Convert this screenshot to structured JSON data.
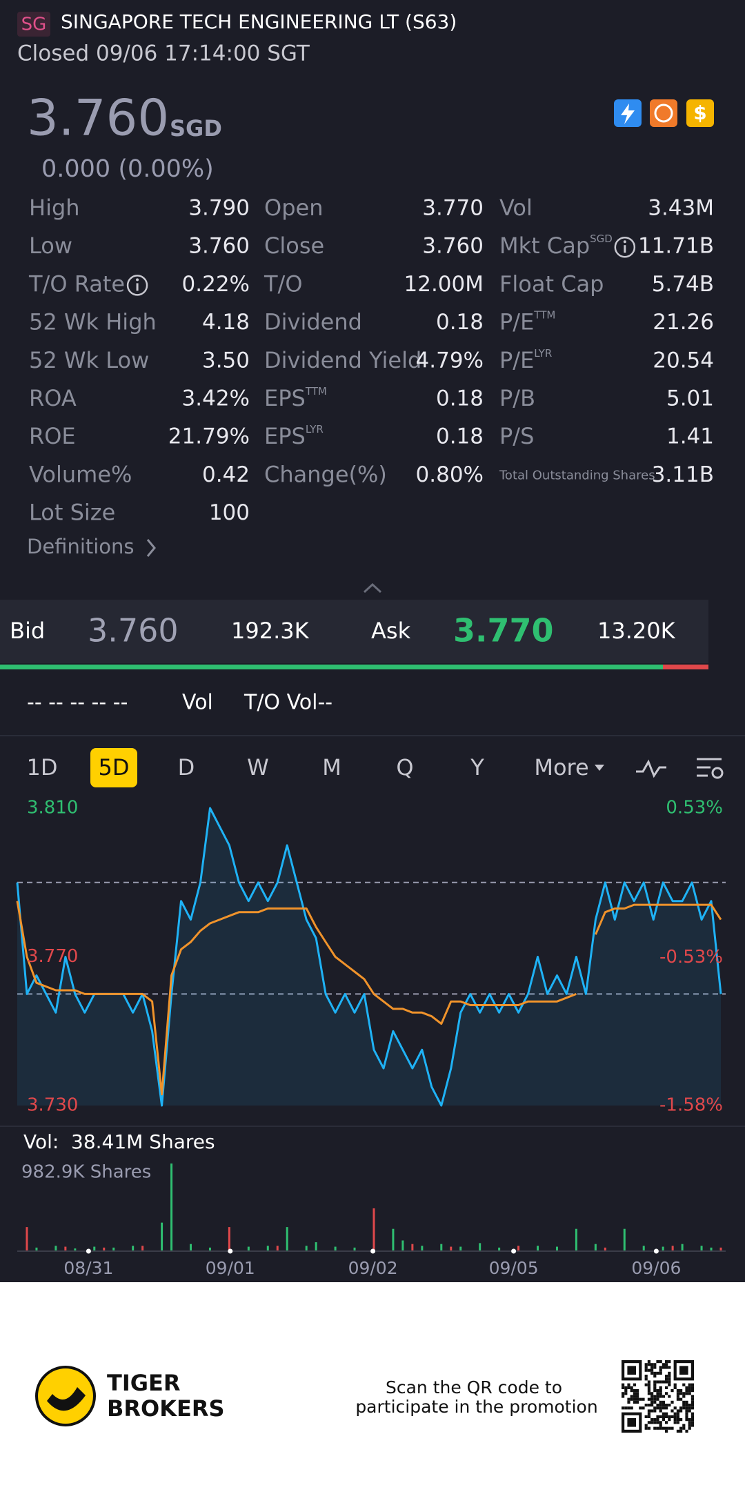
{
  "header": {
    "badge": "SG",
    "title": "SINGAPORE TECH ENGINEERING LT (S63)",
    "status": "Closed 09/06 17:14:00 SGT"
  },
  "quote": {
    "price": "3.760",
    "currency": "SGD",
    "change": "0.000 (0.00%)"
  },
  "stats": [
    [
      {
        "label": "High",
        "value": "3.790"
      },
      {
        "label": "Open",
        "value": "3.770"
      },
      {
        "label": "Vol",
        "value": "3.43M"
      }
    ],
    [
      {
        "label": "Low",
        "value": "3.760"
      },
      {
        "label": "Close",
        "value": "3.760"
      },
      {
        "label": "Mkt Cap",
        "sup": "SGD",
        "info": true,
        "value": "11.71B"
      }
    ],
    [
      {
        "label": "T/O Rate",
        "info": true,
        "value": "0.22%"
      },
      {
        "label": "T/O",
        "value": "12.00M"
      },
      {
        "label": "Float Cap",
        "value": "5.74B"
      }
    ],
    [
      {
        "label": "52 Wk High",
        "value": "4.18"
      },
      {
        "label": "Dividend",
        "value": "0.18"
      },
      {
        "label": "P/E",
        "sup": "TTM",
        "value": "21.26"
      }
    ],
    [
      {
        "label": "52 Wk Low",
        "value": "3.50"
      },
      {
        "label": "Dividend Yield",
        "value": "4.79%"
      },
      {
        "label": "P/E",
        "sup": "LYR",
        "value": "20.54"
      }
    ],
    [
      {
        "label": "ROA",
        "value": "3.42%"
      },
      {
        "label": "EPS",
        "sup": "TTM",
        "value": "0.18"
      },
      {
        "label": "P/B",
        "value": "5.01"
      }
    ],
    [
      {
        "label": "ROE",
        "value": "21.79%"
      },
      {
        "label": "EPS",
        "sup": "LYR",
        "value": "0.18"
      },
      {
        "label": "P/S",
        "value": "1.41"
      }
    ],
    [
      {
        "label": "Volume%",
        "value": "0.42"
      },
      {
        "label": "Change(%)",
        "value": "0.80%"
      },
      {
        "label": "Total Outstanding Shares",
        "small": true,
        "value": "3.11B"
      }
    ],
    [
      {
        "label": "Lot Size",
        "value": "100"
      }
    ]
  ],
  "definitions": "Definitions",
  "order_book": {
    "bid_label": "Bid",
    "bid": "3.760",
    "bid_size": "192.3K",
    "ask_label": "Ask",
    "ask": "3.770",
    "ask_size": "13.20K"
  },
  "indicator_row": {
    "ma": "-- -- -- -- --",
    "vol": "Vol",
    "to_vol": "T/O Vol--"
  },
  "periods": [
    "1D",
    "5D",
    "D",
    "W",
    "M",
    "Q",
    "Y",
    "More"
  ],
  "active_period": "5D",
  "chart_data": {
    "type": "line",
    "xlim": [
      0,
      73
    ],
    "ylim": [
      3.73,
      3.81
    ],
    "yticks": [
      {
        "value": 3.81,
        "label": "3.810",
        "color": "#2fbf71"
      },
      {
        "value": 3.77,
        "label": "3.770",
        "color": "#e0484b"
      },
      {
        "value": 3.73,
        "label": "3.730",
        "color": "#e0484b"
      }
    ],
    "y2lim": [
      -1.58,
      0.53
    ],
    "y2ticks": [
      {
        "value": 0.53,
        "label": "0.53%",
        "color": "#2fbf71"
      },
      {
        "value": -0.53,
        "label": "-0.53%",
        "color": "#e0484b"
      },
      {
        "value": -1.58,
        "label": "-1.58%",
        "color": "#e0484b"
      }
    ],
    "reference_lines": [
      3.79,
      3.76
    ],
    "xticks": [
      {
        "value": 7.4,
        "label": "08/31"
      },
      {
        "value": 22.1,
        "label": "09/01"
      },
      {
        "value": 36.9,
        "label": "09/02"
      },
      {
        "value": 51.5,
        "label": "09/05"
      },
      {
        "value": 66.3,
        "label": "09/06"
      }
    ],
    "series": [
      {
        "color": "#1fb2f5",
        "values": [
          3.79,
          3.76,
          3.765,
          3.76,
          3.755,
          3.77,
          3.76,
          3.755,
          3.76,
          3.76,
          3.76,
          3.76,
          3.755,
          3.76,
          3.75,
          3.73,
          3.76,
          3.785,
          3.78,
          3.79,
          3.81,
          3.805,
          3.8,
          3.79,
          3.785,
          3.79,
          3.785,
          3.79,
          3.8,
          3.79,
          3.78,
          3.775,
          3.76,
          3.755,
          3.76,
          3.755,
          3.76,
          3.745,
          3.74,
          3.75,
          3.745,
          3.74,
          3.745,
          3.735,
          3.73,
          3.74,
          3.755,
          3.76,
          3.755,
          3.76,
          3.755,
          3.76,
          3.755,
          3.76,
          3.77,
          3.76,
          3.765,
          3.76,
          3.77,
          3.76,
          3.78,
          3.79,
          3.78,
          3.79,
          3.785,
          3.79,
          3.78,
          3.79,
          3.785,
          3.785,
          3.79,
          3.78,
          3.785,
          3.76
        ]
      },
      {
        "color": "#f0932b",
        "values": [
          3.785,
          3.77,
          3.763,
          3.762,
          3.761,
          3.761,
          3.761,
          3.76,
          3.76,
          3.76,
          3.76,
          3.76,
          3.76,
          3.76,
          3.758,
          3.733,
          3.765,
          3.772,
          3.774,
          3.777,
          3.779,
          3.78,
          3.781,
          3.782,
          3.782,
          3.782,
          3.783,
          3.783,
          3.783,
          3.783,
          3.783,
          3.778,
          3.774,
          3.77,
          3.768,
          3.766,
          3.764,
          3.76,
          3.758,
          3.756,
          3.756,
          3.755,
          3.755,
          3.754,
          3.752,
          3.758,
          3.758,
          3.757,
          3.757,
          3.757,
          3.757,
          3.757,
          3.757,
          3.758,
          3.758,
          3.758,
          3.758,
          3.759,
          3.76,
          null,
          3.776,
          3.782,
          3.783,
          3.783,
          3.784,
          3.784,
          3.784,
          3.784,
          3.784,
          3.784,
          3.784,
          3.784,
          3.784,
          3.78
        ]
      }
    ]
  },
  "volume_chart": {
    "type": "bar",
    "label": "Vol:",
    "total": "38.41M Shares",
    "max_label": "982.9K Shares",
    "xlim": [
      0,
      73
    ],
    "ylim": [
      0,
      982.9
    ],
    "series": [
      {
        "color": "#2fbf71",
        "values": [
          null,
          null,
          40,
          null,
          60,
          null,
          30,
          null,
          50,
          null,
          40,
          null,
          60,
          null,
          null,
          320,
          982.9,
          null,
          80,
          null,
          40,
          null,
          null,
          null,
          50,
          null,
          60,
          null,
          270,
          null,
          60,
          100,
          null,
          50,
          null,
          40,
          null,
          null,
          null,
          250,
          120,
          null,
          60,
          null,
          80,
          null,
          50,
          null,
          90,
          null,
          40,
          null,
          null,
          null,
          60,
          null,
          50,
          null,
          250,
          null,
          80,
          null,
          null,
          250,
          null,
          60,
          null,
          50,
          null,
          80,
          null,
          60,
          40,
          null
        ]
      },
      {
        "color": "#e0484b",
        "values": [
          null,
          270,
          null,
          null,
          null,
          50,
          null,
          null,
          null,
          40,
          null,
          null,
          null,
          60,
          null,
          null,
          null,
          null,
          null,
          null,
          null,
          null,
          270,
          null,
          null,
          null,
          null,
          60,
          null,
          null,
          null,
          null,
          null,
          null,
          null,
          null,
          null,
          480,
          null,
          null,
          null,
          80,
          null,
          null,
          null,
          50,
          null,
          null,
          null,
          null,
          null,
          null,
          60,
          null,
          null,
          null,
          null,
          null,
          null,
          null,
          null,
          40,
          null,
          null,
          null,
          null,
          null,
          null,
          60,
          null,
          null,
          null,
          null,
          40
        ]
      }
    ]
  },
  "footer": {
    "brand": [
      "TIGER",
      "BROKERS"
    ],
    "promo": [
      "Scan the QR code to",
      "participate in the promotion"
    ]
  }
}
